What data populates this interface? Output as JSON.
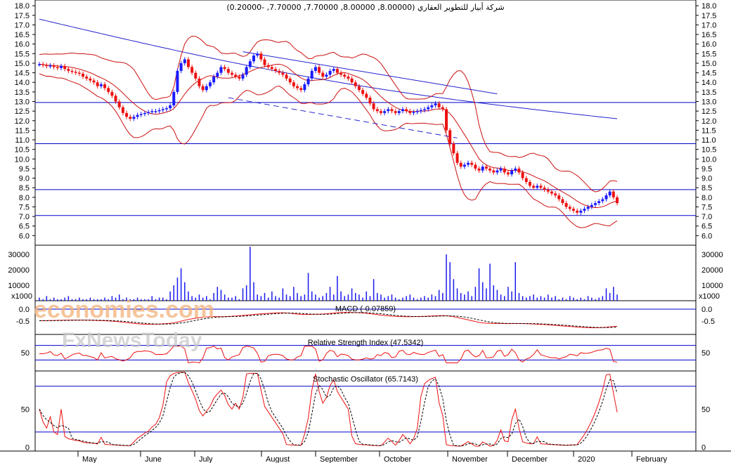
{
  "chart_data": {
    "type": "candlestick",
    "title": "شركة أبيار للتطوير العقاري (8.00000, 8.00000, 7.70000, 7.70000, -0.20000)",
    "watermark": [
      "economies.com",
      "FxNewsToday"
    ],
    "x_labels": [
      "May",
      "June",
      "July",
      "August",
      "September",
      "October",
      "November",
      "December",
      "2020",
      "February"
    ],
    "price_axis": {
      "ylim": [
        5.5,
        18.3
      ],
      "ticks": [
        "18.0",
        "17.5",
        "17.0",
        "16.5",
        "16.0",
        "15.5",
        "15.0",
        "14.5",
        "14.0",
        "13.5",
        "13.0",
        "12.5",
        "12.0",
        "11.5",
        "11.0",
        "10.5",
        "10.0",
        "9.5",
        "9.0",
        "8.5",
        "8.0",
        "7.5",
        "7.0",
        "6.5",
        "6.0"
      ],
      "horizontal_lines": [
        12.95,
        10.8,
        8.4,
        7.05
      ]
    },
    "price_series": [
      14.95,
      14.9,
      14.85,
      14.88,
      14.8,
      14.75,
      14.85,
      14.7,
      14.6,
      14.55,
      14.5,
      14.45,
      14.3,
      14.2,
      14.1,
      14.0,
      13.8,
      13.9,
      13.7,
      13.5,
      13.3,
      13.0,
      12.7,
      12.4,
      12.2,
      12.1,
      12.2,
      12.3,
      12.35,
      12.4,
      12.45,
      12.5,
      12.5,
      12.55,
      12.6,
      12.65,
      12.8,
      13.5,
      14.6,
      15.0,
      15.2,
      14.8,
      14.5,
      14.2,
      13.8,
      13.6,
      13.8,
      14.0,
      14.3,
      14.5,
      14.8,
      14.7,
      14.5,
      14.4,
      14.3,
      14.2,
      14.4,
      14.8,
      15.1,
      15.4,
      15.5,
      15.2,
      14.9,
      14.8,
      14.7,
      14.6,
      14.5,
      14.4,
      14.2,
      14.0,
      13.8,
      13.7,
      13.6,
      13.9,
      14.2,
      14.6,
      14.8,
      14.5,
      14.3,
      14.4,
      14.6,
      14.7,
      14.5,
      14.4,
      14.3,
      14.2,
      14.0,
      13.8,
      13.6,
      13.4,
      13.2,
      12.9,
      12.6,
      12.5,
      12.4,
      12.5,
      12.6,
      12.5,
      12.4,
      12.5,
      12.6,
      12.5,
      12.4,
      12.45,
      12.5,
      12.55,
      12.6,
      12.7,
      12.8,
      12.9,
      12.7,
      12.6,
      11.5,
      10.8,
      10.3,
      9.8,
      9.6,
      9.7,
      9.8,
      9.7,
      9.5,
      9.4,
      9.6,
      9.5,
      9.4,
      9.3,
      9.4,
      9.5,
      9.3,
      9.2,
      9.4,
      9.5,
      9.3,
      9.0,
      8.8,
      8.6,
      8.5,
      8.6,
      8.5,
      8.4,
      8.3,
      8.2,
      8.1,
      7.9,
      7.7,
      7.5,
      7.4,
      7.3,
      7.2,
      7.3,
      7.4,
      7.5,
      7.6,
      7.7,
      7.8,
      7.9,
      8.1,
      8.3,
      8.0,
      7.7
    ],
    "volume_axis": {
      "ylim": [
        0,
        36000
      ],
      "ticks": [
        "30000",
        "20000",
        "10000"
      ],
      "unit": "x1000"
    },
    "volume_series": [
      2,
      1,
      3,
      1,
      2,
      1,
      1,
      2,
      3,
      1,
      1,
      2,
      1,
      1,
      2,
      1,
      1,
      1,
      2,
      1,
      3,
      2,
      4,
      1,
      2,
      1,
      1,
      2,
      1,
      1,
      1,
      3,
      1,
      2,
      2,
      1,
      6,
      10,
      15,
      21,
      12,
      6,
      3,
      2,
      4,
      2,
      3,
      1,
      5,
      9,
      7,
      4,
      2,
      2,
      3,
      1,
      8,
      10,
      35,
      12,
      4,
      3,
      5,
      2,
      6,
      3,
      2,
      8,
      4,
      3,
      9,
      5,
      3,
      4,
      18,
      6,
      4,
      2,
      3,
      5,
      9,
      4,
      16,
      6,
      3,
      4,
      8,
      5,
      4,
      2,
      6,
      3,
      14,
      5,
      4,
      2,
      3,
      4,
      2,
      1,
      2,
      3,
      4,
      2,
      1,
      2,
      3,
      2,
      4,
      3,
      7,
      5,
      30,
      25,
      14,
      8,
      5,
      4,
      6,
      3,
      9,
      21,
      12,
      8,
      24,
      10,
      7,
      4,
      3,
      9,
      6,
      25,
      5,
      3,
      2,
      3,
      4,
      2,
      3,
      2,
      4,
      2,
      3,
      1,
      2,
      1,
      3,
      2,
      1,
      2,
      1,
      3,
      2,
      1,
      2,
      3,
      8,
      5,
      9,
      4
    ],
    "macd": {
      "label": "MACD (-0.07859)",
      "ticks": [
        "0.0",
        "-0.5"
      ],
      "ylim": [
        -1.05,
        0.35
      ]
    },
    "rsi": {
      "label": "Relative Strength Index (47.5342)",
      "ticks": [
        "50"
      ],
      "ylim": [
        0,
        100
      ],
      "levels": [
        70,
        30
      ]
    },
    "stochastic": {
      "label": "Stochastic Oscillator (65.7143)",
      "ticks": [
        "50",
        "0"
      ],
      "ylim": [
        -5,
        100
      ],
      "levels": [
        80,
        20
      ]
    },
    "colors": {
      "up": "#1a1aff",
      "down": "#ee1111",
      "bands": "#cc1111",
      "ma_long": "#2222cc",
      "grid": "#0000cc",
      "axis": "#000000",
      "volume": "#1a1aee",
      "signal": "#000000",
      "watermark": "#f2b27a",
      "watermark2": "#c9c9c9"
    }
  }
}
